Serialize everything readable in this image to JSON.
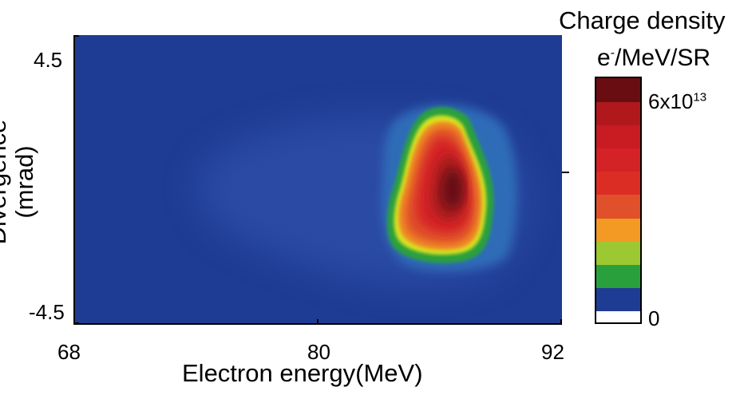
{
  "chart_data": {
    "type": "heatmap",
    "xlabel_main": "Electron energy",
    "xlabel_unit": "(MeV)",
    "ylabel_line1": "Divergence",
    "ylabel_line2": "(mrad)",
    "xlim": [
      68,
      92
    ],
    "ylim": [
      -4.5,
      4.5
    ],
    "x_ticks": [
      {
        "value": 68,
        "label": "68"
      },
      {
        "value": 80,
        "label": "80"
      },
      {
        "value": 92,
        "label": "92"
      }
    ],
    "y_ticks": [
      {
        "value": 4.5,
        "label": "4.5"
      },
      {
        "value": -4.5,
        "label": "-4.5"
      }
    ],
    "colorbar": {
      "title": "Charge density",
      "unit_prefix": "e",
      "unit_sup": "-",
      "unit_suffix": "/MeV/SR",
      "min": 0,
      "max": 60000000000000.0,
      "min_label": "0",
      "max_label_base": "6x10",
      "max_label_exp": "13",
      "colors": [
        "#ffffff",
        "#1f3c94",
        "#2aa03c",
        "#9cc832",
        "#f29a24",
        "#e0502a",
        "#dc2d24",
        "#d42226",
        "#c81c22",
        "#b0181e",
        "#6a0d12"
      ]
    },
    "peak": {
      "energy_mev": 86.5,
      "divergence_mrad": 0.2,
      "max_value": 60000000000000.0
    }
  }
}
